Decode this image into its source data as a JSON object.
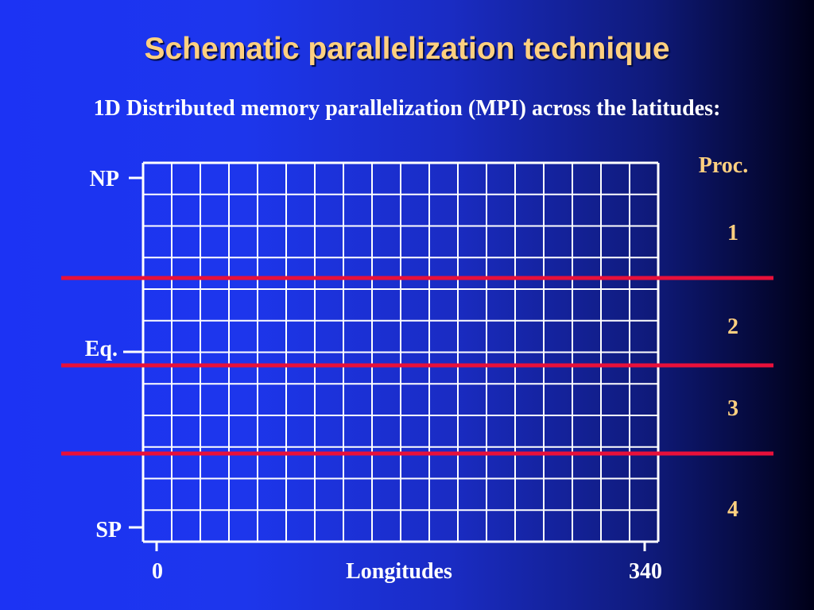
{
  "title": "Schematic parallelization technique",
  "subtitle": "1D Distributed memory parallelization (MPI) across the latitudes:",
  "grid": {
    "columns": 18,
    "rows": 12
  },
  "latitude_labels": [
    "NP",
    "Eq.",
    "SP"
  ],
  "processor_header": "Proc.",
  "processors": [
    "1",
    "2",
    "3",
    "4"
  ],
  "x_axis": {
    "label": "Longitudes",
    "min_label": "0",
    "max_label": "340"
  },
  "colors": {
    "grid": "#ffffff",
    "partition_line": "#e8103a",
    "title": "#ffd080",
    "label": "#ffffff"
  }
}
